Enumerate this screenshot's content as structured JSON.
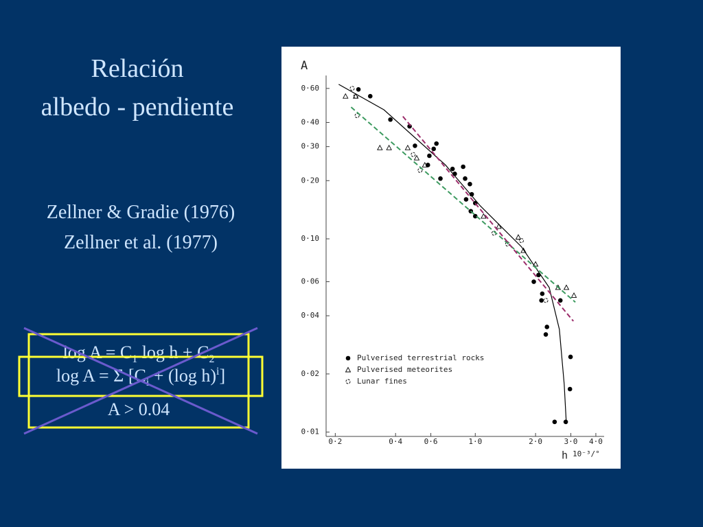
{
  "slide": {
    "title": [
      "Relación",
      "albedo - pendiente"
    ],
    "references": [
      "Zellner & Gradie (1976)",
      "Zellner et al. (1977)"
    ],
    "formula_1": [
      "log A = C",
      "1",
      " log h + C",
      "2"
    ],
    "formula_2": [
      "log A = Σ [C",
      "i",
      " + (log h)",
      "i",
      "]"
    ],
    "condition": "A > 0.04"
  },
  "chart_data": {
    "type": "scatter",
    "y_label": "A",
    "x_label": "h",
    "x_unit": "10⁻³/°",
    "log_x": true,
    "log_y": true,
    "grid": false,
    "xlim": [
      0.18,
      4.4
    ],
    "ylim": [
      0.0095,
      0.7
    ],
    "xticks": [
      {
        "value": 0.2,
        "label": "0·2"
      },
      {
        "value": 0.4,
        "label": "0·4"
      },
      {
        "value": 0.6,
        "label": "0·6"
      },
      {
        "value": 1.0,
        "label": "1·0"
      },
      {
        "value": 2.0,
        "label": "2·0"
      },
      {
        "value": 3.0,
        "label": "3·0"
      },
      {
        "value": 4.0,
        "label": "4·0"
      }
    ],
    "yticks": [
      {
        "value": 0.01,
        "label": "0·01"
      },
      {
        "value": 0.02,
        "label": "0·02"
      },
      {
        "value": 0.04,
        "label": "0·04"
      },
      {
        "value": 0.06,
        "label": "0·06"
      },
      {
        "value": 0.1,
        "label": "0·10"
      },
      {
        "value": 0.2,
        "label": "0·20"
      },
      {
        "value": 0.3,
        "label": "0·30"
      },
      {
        "value": 0.4,
        "label": "0·40"
      },
      {
        "value": 0.6,
        "label": "0·60"
      }
    ],
    "legend": "bottom-left",
    "series": [
      {
        "name": "Pulverised terrestrial rocks",
        "marker": "dot",
        "color": "#000000",
        "x": [
          0.261,
          0.299,
          0.377,
          0.47,
          0.5,
          0.59,
          0.58,
          0.64,
          0.62,
          0.67,
          0.77,
          0.79,
          0.87,
          0.89,
          0.94,
          0.9,
          0.96,
          1.0,
          0.95,
          1.0,
          2.07,
          1.96,
          2.16,
          2.14,
          2.28,
          2.25,
          2.49,
          2.66,
          2.83,
          2.97,
          2.99
        ],
        "y": [
          0.593,
          0.547,
          0.414,
          0.382,
          0.303,
          0.269,
          0.241,
          0.311,
          0.292,
          0.205,
          0.23,
          0.217,
          0.236,
          0.205,
          0.192,
          0.16,
          0.17,
          0.153,
          0.139,
          0.131,
          0.065,
          0.06,
          0.052,
          0.048,
          0.035,
          0.032,
          0.0113,
          0.048,
          0.0113,
          0.0167,
          0.0245
        ]
      },
      {
        "name": "Pulverised meteorites",
        "marker": "triangle",
        "color": "#000000",
        "x": [
          0.225,
          0.253,
          0.334,
          0.371,
          0.46,
          0.51,
          0.56,
          1.1,
          1.31,
          1.64,
          1.74,
          2.0,
          2.59,
          2.85,
          3.11
        ],
        "y": [
          0.547,
          0.547,
          0.296,
          0.296,
          0.296,
          0.262,
          0.241,
          0.131,
          0.116,
          0.102,
          0.087,
          0.074,
          0.056,
          0.056,
          0.051
        ]
      },
      {
        "name": "Lunar fines",
        "marker": "ring",
        "color": "#000000",
        "x": [
          0.243,
          0.253,
          0.257,
          0.49,
          0.53,
          1.24,
          1.45,
          1.7,
          2.25
        ],
        "y": [
          0.6,
          0.547,
          0.434,
          0.273,
          0.226,
          0.107,
          0.094,
          0.098,
          0.048
        ]
      },
      {
        "line": "solid",
        "color": "#000000",
        "x": [
          0.208,
          0.35,
          0.71,
          1.06,
          1.7,
          2.34,
          2.63,
          2.78,
          2.85
        ],
        "y": [
          0.63,
          0.465,
          0.241,
          0.148,
          0.091,
          0.056,
          0.034,
          0.0177,
          0.011
        ]
      },
      {
        "line": "dashed",
        "color": "#3c9a5f",
        "x": [
          0.24,
          3.16
        ],
        "y": [
          0.48,
          0.047
        ]
      },
      {
        "line": "dashed",
        "color": "#9b2c6a",
        "x": [
          0.435,
          3.09
        ],
        "y": [
          0.43,
          0.0375
        ]
      }
    ]
  }
}
